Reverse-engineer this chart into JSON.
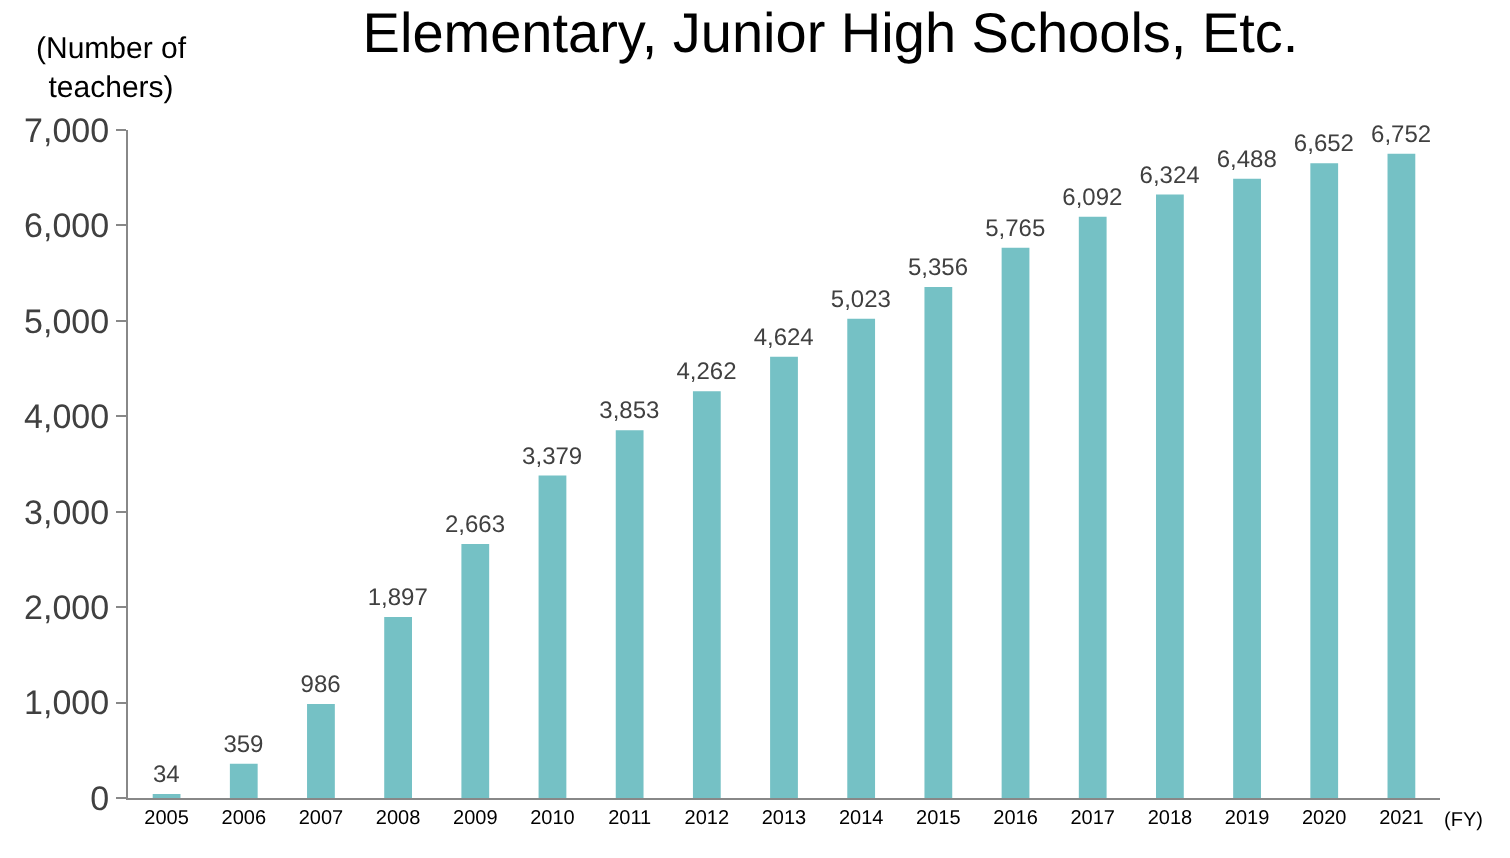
{
  "chart_data": {
    "type": "bar",
    "title": "Elementary, Junior High Schools, Etc.",
    "ylabel": "(Number of teachers)",
    "xlabel": "(FY)",
    "categories": [
      "2005",
      "2006",
      "2007",
      "2008",
      "2009",
      "2010",
      "2011",
      "2012",
      "2013",
      "2014",
      "2015",
      "2016",
      "2017",
      "2018",
      "2019",
      "2020",
      "2021"
    ],
    "values": [
      34,
      359,
      986,
      1897,
      2663,
      3379,
      3853,
      4262,
      4624,
      5023,
      5356,
      5765,
      6092,
      6324,
      6488,
      6652,
      6752
    ],
    "color": "#75c1c5",
    "ylim": [
      0,
      7000
    ],
    "yticks": [
      {
        "value": 0,
        "label": "0"
      },
      {
        "value": 1000,
        "label": "1,000"
      },
      {
        "value": 2000,
        "label": "2,000"
      },
      {
        "value": 3000,
        "label": "3,000"
      },
      {
        "value": 4000,
        "label": "4,000"
      },
      {
        "value": 5000,
        "label": "5,000"
      },
      {
        "value": 6000,
        "label": "6,000"
      },
      {
        "value": 7000,
        "label": "7,000"
      }
    ],
    "value_labels": [
      "34",
      "359",
      "986",
      "1,897",
      "2,663",
      "3,379",
      "3,853",
      "4,262",
      "4,624",
      "5,023",
      "5,356",
      "5,765",
      "6,092",
      "6,324",
      "6,488",
      "6,652",
      "6,752"
    ],
    "grid": false,
    "legend": false
  }
}
